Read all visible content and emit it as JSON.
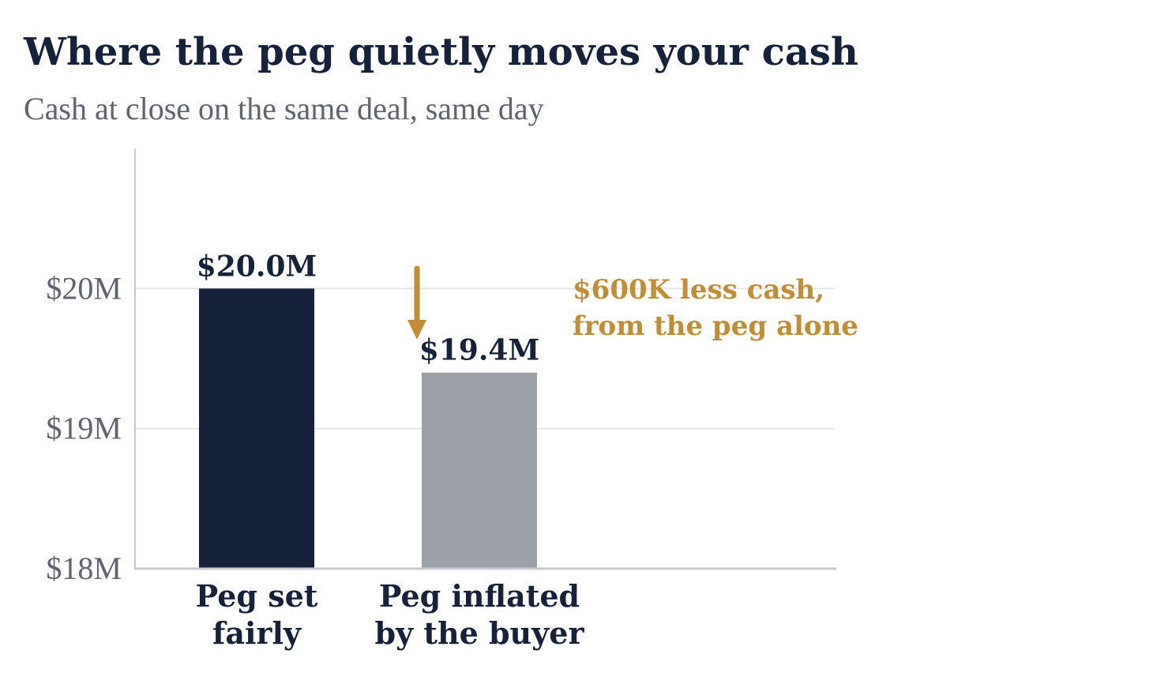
{
  "title": "Where the peg quietly moves your cash",
  "subtitle": "Cash at close on the same deal, same day",
  "colors": {
    "fair": "#16213a",
    "inflated": "#9ca1a8",
    "accent": "#c28d35",
    "grid": "#e6e6e9",
    "axis": "#c9cacf",
    "tick_text": "#5f6470",
    "label_text": "#16213a"
  },
  "chart_data": {
    "type": "bar",
    "categories": [
      [
        "Peg set",
        "fairly"
      ],
      [
        "Peg inflated",
        "by the buyer"
      ]
    ],
    "values": [
      20.0,
      19.4
    ],
    "value_labels": [
      "$20.0M",
      "$19.4M"
    ],
    "unit": "$M",
    "ylim": [
      18,
      21
    ],
    "yticks": [
      18,
      19,
      20
    ],
    "ytick_labels": [
      "$18M",
      "$19M",
      "$20M"
    ],
    "grid": true,
    "annotation": {
      "lines": [
        "$600K less cash,",
        "from the peg alone"
      ],
      "arrow": "down"
    }
  }
}
